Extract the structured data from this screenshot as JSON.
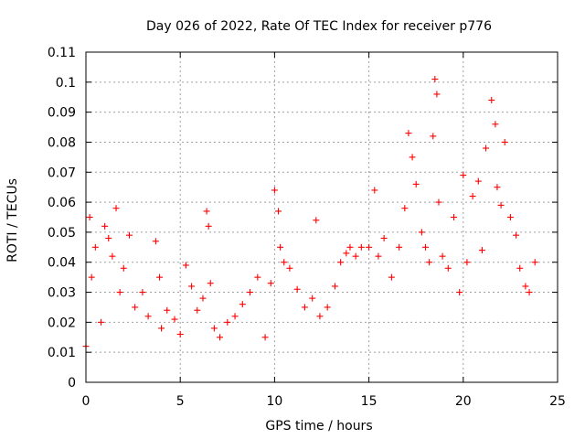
{
  "chart_data": {
    "type": "scatter",
    "title": "Day 026 of 2022, Rate Of TEC Index for receiver p776",
    "xlabel": "GPS time / hours",
    "ylabel": "ROTI / TECUs",
    "xlim": [
      0,
      25
    ],
    "ylim": [
      0,
      0.11
    ],
    "x_ticks": [
      "0",
      "5",
      "10",
      "15",
      "20",
      "25"
    ],
    "y_ticks": [
      "0",
      "0.01",
      "0.02",
      "0.03",
      "0.04",
      "0.05",
      "0.06",
      "0.07",
      "0.08",
      "0.09",
      "0.1",
      "0.11"
    ],
    "grid": true,
    "marker": "+",
    "series": [
      {
        "name": "ROTI",
        "color": "#ff0000",
        "x": [
          0.0,
          0.2,
          0.3,
          0.5,
          0.8,
          1.0,
          1.2,
          1.4,
          1.6,
          1.8,
          2.0,
          2.3,
          2.6,
          3.0,
          3.3,
          3.7,
          3.9,
          4.0,
          4.3,
          4.7,
          5.0,
          5.3,
          5.6,
          5.9,
          6.2,
          6.4,
          6.5,
          6.6,
          6.8,
          7.1,
          7.5,
          7.9,
          8.3,
          8.7,
          9.1,
          9.5,
          9.8,
          10.0,
          10.2,
          10.3,
          10.5,
          10.8,
          11.2,
          11.6,
          12.0,
          12.2,
          12.4,
          12.8,
          13.2,
          13.5,
          13.8,
          14.0,
          14.3,
          14.6,
          15.0,
          15.3,
          15.5,
          15.8,
          16.2,
          16.6,
          16.9,
          17.1,
          17.3,
          17.5,
          17.8,
          18.0,
          18.2,
          18.4,
          18.5,
          18.6,
          18.7,
          18.9,
          19.2,
          19.5,
          19.8,
          20.0,
          20.2,
          20.5,
          20.8,
          21.0,
          21.2,
          21.5,
          21.7,
          21.8,
          22.0,
          22.2,
          22.5,
          22.8,
          23.0,
          23.3,
          23.5,
          23.8
        ],
        "y": [
          0.012,
          0.055,
          0.035,
          0.045,
          0.02,
          0.052,
          0.048,
          0.042,
          0.058,
          0.03,
          0.038,
          0.049,
          0.025,
          0.03,
          0.022,
          0.047,
          0.035,
          0.018,
          0.024,
          0.021,
          0.016,
          0.039,
          0.032,
          0.024,
          0.028,
          0.057,
          0.052,
          0.033,
          0.018,
          0.015,
          0.02,
          0.022,
          0.026,
          0.03,
          0.035,
          0.015,
          0.033,
          0.064,
          0.057,
          0.045,
          0.04,
          0.038,
          0.031,
          0.025,
          0.028,
          0.054,
          0.022,
          0.025,
          0.032,
          0.04,
          0.043,
          0.045,
          0.042,
          0.045,
          0.045,
          0.064,
          0.042,
          0.048,
          0.035,
          0.045,
          0.058,
          0.083,
          0.075,
          0.066,
          0.05,
          0.045,
          0.04,
          0.082,
          0.101,
          0.096,
          0.06,
          0.042,
          0.038,
          0.055,
          0.03,
          0.069,
          0.04,
          0.062,
          0.067,
          0.044,
          0.078,
          0.094,
          0.086,
          0.065,
          0.059,
          0.08,
          0.055,
          0.049,
          0.038,
          0.032,
          0.03,
          0.04
        ]
      }
    ]
  }
}
